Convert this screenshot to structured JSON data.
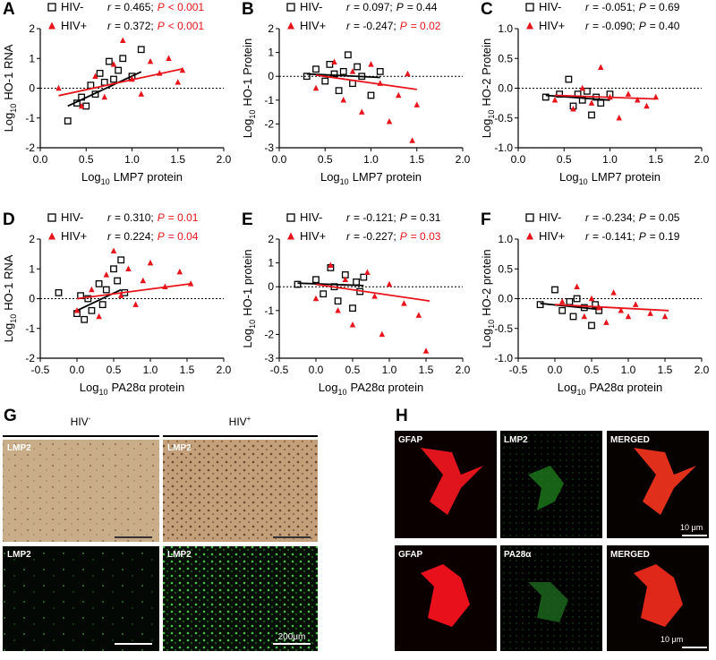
{
  "chart_data": [
    {
      "type": "scatter",
      "panel": "A",
      "xlabel": [
        "Log",
        "10",
        "LMP7 protein"
      ],
      "ylabel": [
        "Log",
        "10",
        "HO-1 RNA"
      ],
      "stat_symbols": [
        "r",
        "P"
      ],
      "xlim": [
        0,
        2
      ],
      "xticks": [
        {
          "value": 0,
          "label": "0.0"
        },
        0.5,
        {
          "value": 1,
          "label": "1.0"
        },
        1.5,
        {
          "value": 2,
          "label": "2.0"
        }
      ],
      "ylim": [
        -2,
        2
      ],
      "yticks": [
        -2,
        -1,
        0,
        1,
        2
      ],
      "reference_line": 0,
      "series": [
        {
          "name": "HIV-",
          "color": "#000000",
          "marker": "square",
          "stat_r": "= 0.465;",
          "stat_p": "< 0.001",
          "p_significant": true,
          "x": [
            0.3,
            0.4,
            0.45,
            0.5,
            0.55,
            0.6,
            0.65,
            0.7,
            0.75,
            0.8,
            0.85,
            0.9,
            1.0,
            1.1
          ],
          "values": [
            -1.1,
            -0.5,
            -0.3,
            -0.6,
            0.1,
            -0.2,
            0.5,
            0.2,
            0.9,
            0.3,
            0.6,
            1.0,
            0.4,
            1.3
          ],
          "fit_x": [
            0.3,
            1.1
          ],
          "fit_y": [
            -0.6,
            0.55
          ]
        },
        {
          "name": "HIV+",
          "color": "#e8141b",
          "marker": "triangle",
          "stat_r": "= 0.372;",
          "stat_p": "< 0.001",
          "p_significant": true,
          "x": [
            0.2,
            0.45,
            0.6,
            0.7,
            0.8,
            0.9,
            1.0,
            1.1,
            1.2,
            1.3,
            1.4,
            1.5,
            1.55
          ],
          "values": [
            0.0,
            -0.6,
            0.4,
            -0.3,
            0.8,
            1.6,
            0.3,
            -0.2,
            0.9,
            0.5,
            1.0,
            0.2,
            0.6
          ],
          "fit_x": [
            0.2,
            1.55
          ],
          "fit_y": [
            -0.25,
            0.65
          ]
        }
      ]
    },
    {
      "type": "scatter",
      "panel": "B",
      "xlabel": [
        "Log",
        "10",
        "LMP7 protein"
      ],
      "ylabel": [
        "Log",
        "10",
        "HO-1 Protein"
      ],
      "stat_symbols": [
        "r",
        "P"
      ],
      "xlim": [
        0,
        2
      ],
      "xticks": [
        {
          "value": 0,
          "label": "0.0"
        },
        0.5,
        {
          "value": 1,
          "label": "1.0"
        },
        1.5,
        {
          "value": 2,
          "label": "2.0"
        }
      ],
      "ylim": [
        -3,
        2
      ],
      "yticks": [
        -3,
        -2,
        -1,
        0,
        1,
        2
      ],
      "reference_line": 0,
      "series": [
        {
          "name": "HIV-",
          "color": "#000000",
          "marker": "square",
          "stat_r": "= 0.097;",
          "stat_p": "= 0.44",
          "p_significant": false,
          "x": [
            0.3,
            0.4,
            0.5,
            0.55,
            0.6,
            0.65,
            0.7,
            0.75,
            0.8,
            0.85,
            0.9,
            1.0,
            1.1
          ],
          "values": [
            0.0,
            0.3,
            -0.2,
            0.5,
            0.1,
            -0.6,
            0.2,
            0.9,
            -0.3,
            0.4,
            0.0,
            -0.8,
            0.2
          ],
          "fit_x": [
            0.3,
            1.1
          ],
          "fit_y": [
            0.1,
            -0.05
          ]
        },
        {
          "name": "HIV+",
          "color": "#e8141b",
          "marker": "triangle",
          "stat_r": "= -0.247;",
          "stat_p": "= 0.02",
          "p_significant": true,
          "x": [
            0.4,
            0.6,
            0.7,
            0.8,
            0.9,
            1.0,
            1.1,
            1.2,
            1.3,
            1.4,
            1.45,
            1.5
          ],
          "values": [
            -0.5,
            0.6,
            -1.0,
            0.2,
            -1.5,
            0.5,
            -0.3,
            -1.9,
            -0.8,
            0.1,
            -2.7,
            -1.2
          ],
          "fit_x": [
            0.4,
            1.5
          ],
          "fit_y": [
            0.05,
            -0.55
          ]
        }
      ]
    },
    {
      "type": "scatter",
      "panel": "C",
      "xlabel": [
        "Log",
        "10",
        "LMP7 protein"
      ],
      "ylabel": [
        "Log",
        "10",
        "HO-2 Protein"
      ],
      "stat_symbols": [
        "r",
        "P"
      ],
      "xlim": [
        0,
        2
      ],
      "xticks": [
        {
          "value": 0,
          "label": "0.0"
        },
        0.5,
        {
          "value": 1,
          "label": "1.0"
        },
        1.5,
        {
          "value": 2,
          "label": "2.0"
        }
      ],
      "ylim": [
        -1,
        1
      ],
      "yticks": [
        {
          "value": -1,
          "label": "-1.0"
        },
        -0.5,
        {
          "value": 0,
          "label": "0.0"
        },
        0.5,
        {
          "value": 1,
          "label": "1.0"
        }
      ],
      "reference_line": 0,
      "series": [
        {
          "name": "HIV-",
          "color": "#000000",
          "marker": "square",
          "stat_r": "= -0.051;",
          "stat_p": "= 0.69",
          "p_significant": false,
          "x": [
            0.3,
            0.45,
            0.55,
            0.6,
            0.65,
            0.7,
            0.75,
            0.8,
            0.85,
            0.9,
            1.0
          ],
          "values": [
            -0.15,
            -0.1,
            0.15,
            -0.3,
            -0.1,
            -0.2,
            -0.05,
            -0.45,
            -0.15,
            -0.25,
            -0.1
          ],
          "fit_x": [
            0.3,
            1.0
          ],
          "fit_y": [
            -0.12,
            -0.2
          ]
        },
        {
          "name": "HIV+",
          "color": "#e8141b",
          "marker": "triangle",
          "stat_r": "= -0.090;",
          "stat_p": "= 0.40",
          "p_significant": false,
          "x": [
            0.4,
            0.6,
            0.7,
            0.8,
            0.9,
            1.0,
            1.1,
            1.2,
            1.3,
            1.4,
            1.5
          ],
          "values": [
            -0.2,
            -0.35,
            0.0,
            -0.25,
            0.35,
            -0.15,
            -0.5,
            -0.1,
            -0.2,
            -0.3,
            -0.15
          ],
          "fit_x": [
            0.4,
            1.5
          ],
          "fit_y": [
            -0.12,
            -0.18
          ]
        }
      ]
    },
    {
      "type": "scatter",
      "panel": "D",
      "xlabel": [
        "Log",
        "10",
        "PA28α protein"
      ],
      "ylabel": [
        "Log",
        "10",
        "HO-1 RNA"
      ],
      "stat_symbols": [
        "r",
        "P"
      ],
      "xlim": [
        -0.5,
        2
      ],
      "xticks": [
        -0.5,
        {
          "value": 0,
          "label": "0.0"
        },
        0.5,
        {
          "value": 1,
          "label": "1.0"
        },
        1.5,
        {
          "value": 2,
          "label": "2.0"
        }
      ],
      "ylim": [
        -2,
        2
      ],
      "yticks": [
        -2,
        -1,
        0,
        1,
        2
      ],
      "reference_line": 0,
      "series": [
        {
          "name": "HIV-",
          "color": "#000000",
          "marker": "square",
          "stat_r": "= 0.310;",
          "stat_p": "= 0.01",
          "p_significant": true,
          "x": [
            -0.25,
            0.0,
            0.05,
            0.1,
            0.15,
            0.2,
            0.3,
            0.35,
            0.4,
            0.5,
            0.55,
            0.6,
            0.65
          ],
          "values": [
            0.2,
            -0.5,
            0.1,
            -0.7,
            0.0,
            -0.4,
            0.5,
            -0.2,
            0.3,
            1.0,
            0.6,
            1.3,
            0.2
          ],
          "fit_x": [
            0.0,
            0.6
          ],
          "fit_y": [
            -0.4,
            0.3
          ]
        },
        {
          "name": "HIV+",
          "color": "#e8141b",
          "marker": "triangle",
          "stat_r": "= 0.224;",
          "stat_p": "= 0.04",
          "p_significant": true,
          "x": [
            0.0,
            0.2,
            0.3,
            0.4,
            0.5,
            0.6,
            0.7,
            0.8,
            0.9,
            1.0,
            1.2,
            1.4,
            1.55
          ],
          "values": [
            -0.4,
            0.3,
            -0.6,
            0.8,
            1.6,
            0.1,
            1.0,
            -0.2,
            0.6,
            1.2,
            0.4,
            0.9,
            0.5
          ],
          "fit_x": [
            0.0,
            1.55
          ],
          "fit_y": [
            0.0,
            0.5
          ]
        }
      ]
    },
    {
      "type": "scatter",
      "panel": "E",
      "xlabel": [
        "Log",
        "10",
        "PA28α protein"
      ],
      "ylabel": [
        "Log",
        "10",
        "HO-1 protein"
      ],
      "stat_symbols": [
        "r",
        "P"
      ],
      "xlim": [
        -0.5,
        2
      ],
      "xticks": [
        -0.5,
        {
          "value": 0,
          "label": "0.0"
        },
        0.5,
        {
          "value": 1,
          "label": "1.0"
        },
        1.5,
        {
          "value": 2,
          "label": "2.0"
        }
      ],
      "ylim": [
        -3,
        2
      ],
      "yticks": [
        -3,
        -2,
        -1,
        0,
        1,
        2
      ],
      "reference_line": 0,
      "series": [
        {
          "name": "HIV-",
          "color": "#000000",
          "marker": "square",
          "stat_r": "= -0.121;",
          "stat_p": "= 0.31",
          "p_significant": false,
          "x": [
            -0.25,
            0.0,
            0.1,
            0.2,
            0.25,
            0.3,
            0.4,
            0.5,
            0.55,
            0.6,
            0.65
          ],
          "values": [
            0.1,
            0.3,
            -0.3,
            0.8,
            0.0,
            -0.6,
            0.5,
            -0.9,
            0.2,
            -0.2,
            0.4
          ],
          "fit_x": [
            -0.25,
            0.65
          ],
          "fit_y": [
            0.15,
            0.05
          ]
        },
        {
          "name": "HIV+",
          "color": "#e8141b",
          "marker": "triangle",
          "stat_r": "= -0.227;",
          "stat_p": "= 0.03",
          "p_significant": true,
          "x": [
            0.0,
            0.2,
            0.3,
            0.4,
            0.5,
            0.7,
            0.8,
            0.9,
            1.0,
            1.2,
            1.4,
            1.5
          ],
          "values": [
            -0.5,
            0.9,
            -1.0,
            0.3,
            -1.6,
            0.6,
            -0.4,
            -2.0,
            0.1,
            -0.7,
            -1.2,
            -2.7
          ],
          "fit_x": [
            0.0,
            1.55
          ],
          "fit_y": [
            0.1,
            -0.6
          ]
        }
      ]
    },
    {
      "type": "scatter",
      "panel": "F",
      "xlabel": [
        "Log",
        "10",
        "PA28α protein"
      ],
      "ylabel": [
        "Log",
        "10",
        "HO-2 protein"
      ],
      "stat_symbols": [
        "r",
        "P"
      ],
      "xlim": [
        -0.5,
        2
      ],
      "xticks": [
        -0.5,
        {
          "value": 0,
          "label": "0.0"
        },
        0.5,
        {
          "value": 1,
          "label": "1.0"
        },
        1.5,
        {
          "value": 2,
          "label": "2.0"
        }
      ],
      "ylim": [
        -1,
        1
      ],
      "yticks": [
        {
          "value": -1,
          "label": "-1.0"
        },
        -0.5,
        {
          "value": 0,
          "label": "0.0"
        },
        0.5,
        {
          "value": 1,
          "label": "1.0"
        }
      ],
      "reference_line": 0,
      "series": [
        {
          "name": "HIV-",
          "color": "#000000",
          "marker": "square",
          "stat_r": "= -0.234;",
          "stat_p": "= 0.05",
          "p_significant": false,
          "x": [
            -0.2,
            0.0,
            0.1,
            0.2,
            0.25,
            0.3,
            0.4,
            0.5,
            0.55,
            0.6
          ],
          "values": [
            -0.1,
            0.15,
            -0.2,
            -0.05,
            -0.3,
            0.0,
            -0.15,
            -0.45,
            -0.1,
            -0.2
          ],
          "fit_x": [
            -0.2,
            0.6
          ],
          "fit_y": [
            -0.08,
            -0.18
          ]
        },
        {
          "name": "HIV+",
          "color": "#e8141b",
          "marker": "triangle",
          "stat_r": "= -0.141;",
          "stat_p": "= 0.19",
          "p_significant": false,
          "x": [
            0.1,
            0.3,
            0.4,
            0.5,
            0.6,
            0.7,
            0.8,
            0.9,
            1.0,
            1.1,
            1.3,
            1.5
          ],
          "values": [
            -0.05,
            0.2,
            -0.3,
            0.0,
            -0.15,
            -0.4,
            0.1,
            -0.2,
            -0.3,
            -0.1,
            -0.25,
            -0.3
          ],
          "fit_x": [
            0.0,
            1.55
          ],
          "fit_y": [
            -0.1,
            -0.2
          ]
        }
      ]
    }
  ],
  "figure_panels": {
    "G": {
      "panel": "G",
      "columns": [
        {
          "text": "HIV",
          "sup": "-"
        },
        {
          "text": "HIV",
          "sup": "+"
        }
      ],
      "tile_labels": [
        "LMP2",
        "LMP2",
        "LMP2",
        "LMP2"
      ],
      "scale_label": "200μm"
    },
    "H": {
      "panel": "H",
      "tile_labels": [
        "GFAP",
        "LMP2",
        "MERGED",
        "GFAP",
        "PA28α",
        "MERGED"
      ],
      "scale_labels": [
        "10 μm",
        "10 μm"
      ]
    }
  }
}
